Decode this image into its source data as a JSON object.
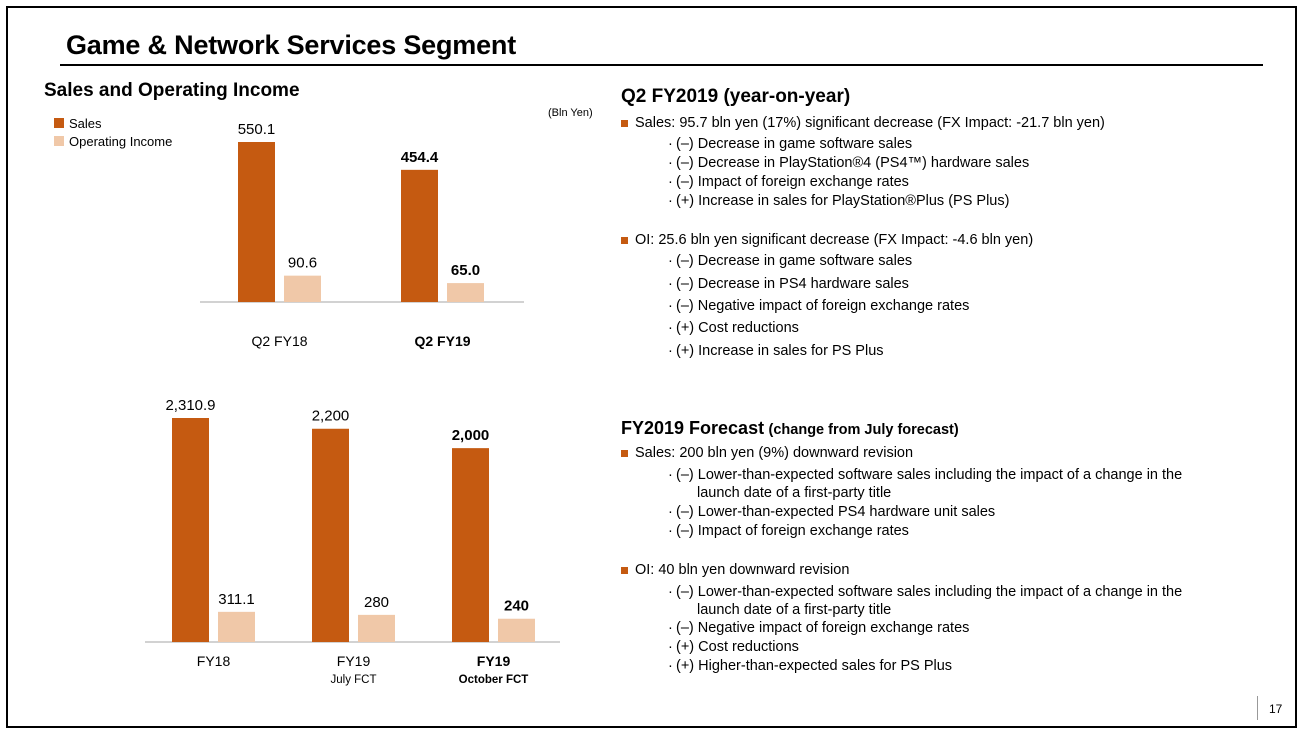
{
  "slide_title": "Game & Network Services Segment",
  "left_heading": "Sales and Operating Income",
  "unit": "(Bln Yen)",
  "legend": [
    {
      "label": "Sales",
      "color": "#c55a11"
    },
    {
      "label": "Operating Income",
      "color": "#f0c8a8"
    }
  ],
  "chart_data": [
    {
      "type": "bar",
      "categories": [
        {
          "label": "Q2 FY18",
          "sub": "",
          "bold": false
        },
        {
          "label": "Q2 FY19",
          "sub": "",
          "bold": true
        }
      ],
      "series": [
        {
          "name": "Sales",
          "color": "#c55a11",
          "values": [
            550.1,
            454.4
          ],
          "labels": [
            "550.1",
            "454.4"
          ]
        },
        {
          "name": "Operating Income",
          "color": "#f0c8a8",
          "values": [
            90.6,
            65.0
          ],
          "labels": [
            "90.6",
            "65.0"
          ]
        }
      ],
      "ylim": [
        0,
        600
      ]
    },
    {
      "type": "bar",
      "categories": [
        {
          "label": "FY18",
          "sub": "",
          "bold": false
        },
        {
          "label": "FY19",
          "sub": "July FCT",
          "bold": false
        },
        {
          "label": "FY19",
          "sub": "October FCT",
          "bold": true
        }
      ],
      "series": [
        {
          "name": "Sales",
          "color": "#c55a11",
          "values": [
            2310.9,
            2200,
            2000
          ],
          "labels": [
            "2,310.9",
            "2,200",
            "2,000"
          ]
        },
        {
          "name": "Operating Income",
          "color": "#f0c8a8",
          "values": [
            311.1,
            280,
            240
          ],
          "labels": [
            "311.1",
            "280",
            "240"
          ]
        }
      ],
      "ylim": [
        0,
        2600
      ]
    }
  ],
  "q2": {
    "heading": "Q2 FY2019 (year-on-year)",
    "sales": {
      "text": "Sales: 95.7 bln yen (17%) significant decrease   (FX Impact: -21.7 bln yen)",
      "items": [
        "(–) Decrease in game software sales",
        "(–) Decrease in PlayStation®4 (PS4™) hardware sales",
        "(–) Impact of foreign exchange rates",
        "(+) Increase in sales for PlayStation®Plus (PS Plus)"
      ]
    },
    "oi": {
      "text": "OI: 25.6 bln yen significant decrease (FX Impact:  -4.6 bln yen)",
      "items": [
        "(–) Decrease in game software sales",
        "(–) Decrease in PS4 hardware sales",
        "(–) Negative impact of foreign exchange rates",
        "(+) Cost reductions",
        "(+) Increase in sales for PS Plus"
      ]
    }
  },
  "fy": {
    "heading_main": "FY2019 Forecast",
    "heading_sub": "(change from July forecast)",
    "sales": {
      "text": "Sales: 200 bln yen (9%) downward revision",
      "items": [
        {
          "line": "(–) Lower-than-expected software sales including the impact of a change in the",
          "cont": "launch date of a first-party title"
        },
        {
          "line": "(–) Lower-than-expected PS4 hardware unit sales",
          "cont": ""
        },
        {
          "line": "(–) Impact of foreign exchange rates",
          "cont": ""
        }
      ]
    },
    "oi": {
      "text": "OI: 40 bln yen downward revision",
      "items": [
        {
          "line": "(–) Lower-than-expected software sales including the impact of a change in the",
          "cont": "launch date of a first-party title"
        },
        {
          "line": "(–) Negative impact of foreign exchange rates",
          "cont": ""
        },
        {
          "line": "(+) Cost reductions",
          "cont": ""
        },
        {
          "line": "(+) Higher-than-expected sales for PS Plus",
          "cont": ""
        }
      ]
    }
  },
  "page_number": "17"
}
